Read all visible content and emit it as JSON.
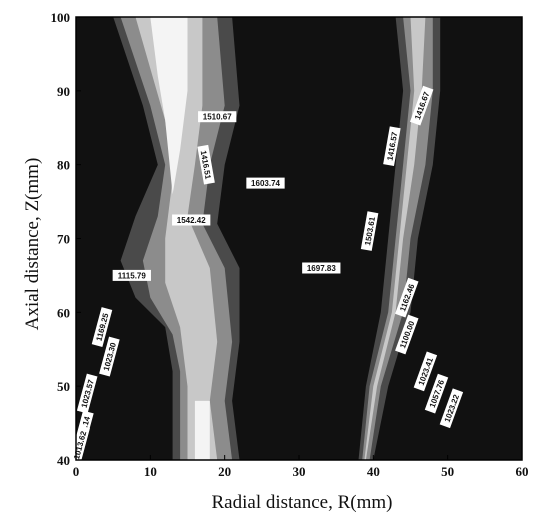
{
  "chart_data": {
    "type": "contour",
    "title": "",
    "xlabel": "Radial distance, R(mm)",
    "ylabel": "Axial distance, Z(mm)",
    "xlim": [
      0,
      60
    ],
    "ylim": [
      40,
      100
    ],
    "x_ticks": [
      "0",
      "10",
      "20",
      "30",
      "40",
      "50",
      "60"
    ],
    "y_ticks": [
      "40",
      "50",
      "60",
      "70",
      "80",
      "90",
      "100"
    ],
    "grid": false,
    "legend": "none",
    "colors": {
      "background": "#111111",
      "level_1": "#4a4a4a",
      "level_2": "#8c8c8c",
      "level_3": "#c8c8c8",
      "level_4": "#f4f4f4"
    },
    "contour_labels": [
      {
        "text": "1510.67",
        "x": 19.0,
        "y": 86.5,
        "angle": 0
      },
      {
        "text": "1416.51",
        "x": 17.5,
        "y": 80.0,
        "angle": 80
      },
      {
        "text": "1603.74",
        "x": 25.5,
        "y": 77.5,
        "angle": 0
      },
      {
        "text": "1542.42",
        "x": 15.5,
        "y": 72.5,
        "angle": 0
      },
      {
        "text": "1416.67",
        "x": 46.5,
        "y": 88.0,
        "angle": -70
      },
      {
        "text": "1416.57",
        "x": 42.5,
        "y": 82.5,
        "angle": -80
      },
      {
        "text": "1503.61",
        "x": 39.5,
        "y": 71.0,
        "angle": -80
      },
      {
        "text": "1697.83",
        "x": 33.0,
        "y": 66.0,
        "angle": 0
      },
      {
        "text": "1162.46",
        "x": 44.5,
        "y": 62.0,
        "angle": -70
      },
      {
        "text": "1115.79",
        "x": 7.5,
        "y": 65.0,
        "angle": 0
      },
      {
        "text": "1169.25",
        "x": 3.5,
        "y": 58.0,
        "angle": -75
      },
      {
        "text": "1023.30",
        "x": 4.5,
        "y": 54.0,
        "angle": -75
      },
      {
        "text": "1023.57",
        "x": 1.5,
        "y": 49.0,
        "angle": -75
      },
      {
        "text": "1100.00",
        "x": 44.5,
        "y": 57.0,
        "angle": -70
      },
      {
        "text": "1023.41",
        "x": 47.0,
        "y": 52.0,
        "angle": -70
      },
      {
        "text": "1057.76",
        "x": 48.5,
        "y": 49.0,
        "angle": -70
      },
      {
        "text": "1023.22",
        "x": 50.5,
        "y": 47.0,
        "angle": -70
      },
      {
        "text": "1056.14",
        "x": 1.0,
        "y": 44.0,
        "angle": -75
      },
      {
        "text": "1013.62",
        "x": 0.5,
        "y": 42.0,
        "angle": -75
      }
    ]
  }
}
